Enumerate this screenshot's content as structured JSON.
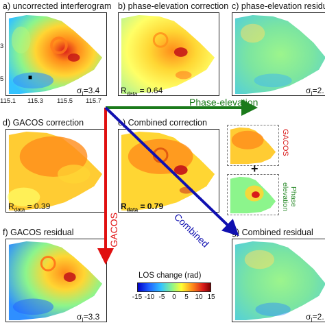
{
  "panels": {
    "a": {
      "title": "a) uncorrected interferogram",
      "stat_prefix": "σ",
      "stat_sub": "I",
      "stat_value": "=3.4"
    },
    "b": {
      "title": "b) phase-elevation correction",
      "stat_prefix": "R",
      "stat_sub": "data",
      "stat_value": " = 0.64"
    },
    "c": {
      "title": "c) phase-elevation residual",
      "stat_prefix": "σ",
      "stat_sub": "I",
      "stat_value": "=2."
    },
    "d": {
      "title": "d) GACOS correction",
      "stat_prefix": "R",
      "stat_sub": "data",
      "stat_value": " = 0.39"
    },
    "e": {
      "title": "e) Combined correction",
      "stat_prefix": "R",
      "stat_sub": "data",
      "stat_value": " = 0.79"
    },
    "f": {
      "title": "f) GACOS residual",
      "stat_prefix": "σ",
      "stat_sub": "I",
      "stat_value": "=3.3"
    },
    "g": {
      "title": "g) Combined residual",
      "stat_prefix": "σ",
      "stat_sub": "I",
      "stat_value": "=2."
    }
  },
  "axis": {
    "x_ticks": [
      "115.1",
      "115.3",
      "115.5",
      "115.7"
    ],
    "y_ticks": [
      "3",
      "5"
    ]
  },
  "arrows": {
    "phase_elevation": "Phase-elevation",
    "gacos": "GACOS",
    "combined": "Combined"
  },
  "inset": {
    "gacos_label": "GACOS",
    "plus": "+",
    "phase_label_1": "Phase",
    "phase_label_2": "elevation"
  },
  "colorbar": {
    "title": "LOS change (rad)",
    "ticks": [
      "-15",
      "-10",
      "-5",
      "0",
      "5",
      "10",
      "15"
    ],
    "range": [
      -15,
      15
    ],
    "colors": [
      "#0000c8",
      "#1f5fff",
      "#33c3ff",
      "#8cf58c",
      "#ffff33",
      "#ff8c1a",
      "#d91a1a",
      "#7a0000"
    ]
  }
}
